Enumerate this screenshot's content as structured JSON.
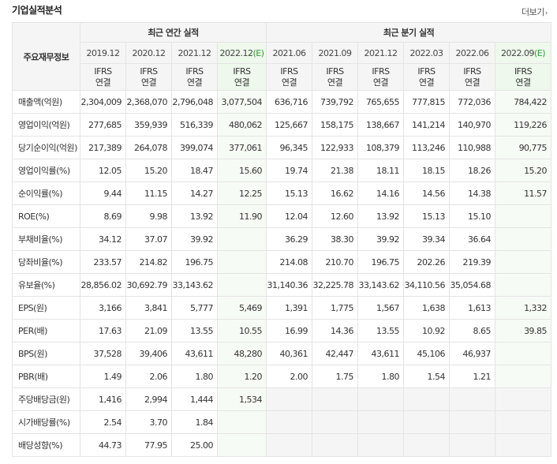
{
  "header": {
    "title": "기업실적분석",
    "more_label": "더보기",
    "more_icon": "chevron-right-icon"
  },
  "table": {
    "row_header_label": "주요재무정보",
    "annual_group_label": "최근 연간 실적",
    "quarter_group_label": "최근 분기 실적",
    "periods": [
      {
        "label": "2019.12",
        "est": "",
        "type_line1": "IFRS",
        "type_line2": "연결"
      },
      {
        "label": "2020.12",
        "est": "",
        "type_line1": "IFRS",
        "type_line2": "연결"
      },
      {
        "label": "2021.12",
        "est": "",
        "type_line1": "IFRS",
        "type_line2": "연결"
      },
      {
        "label": "2022.12",
        "est": "(E)",
        "type_line1": "IFRS",
        "type_line2": "연결"
      },
      {
        "label": "2021.06",
        "est": "",
        "type_line1": "IFRS",
        "type_line2": "연결"
      },
      {
        "label": "2021.09",
        "est": "",
        "type_line1": "IFRS",
        "type_line2": "연결"
      },
      {
        "label": "2021.12",
        "est": "",
        "type_line1": "IFRS",
        "type_line2": "연결"
      },
      {
        "label": "2022.03",
        "est": "",
        "type_line1": "IFRS",
        "type_line2": "연결"
      },
      {
        "label": "2022.06",
        "est": "",
        "type_line1": "IFRS",
        "type_line2": "연결"
      },
      {
        "label": "2022.09",
        "est": "(E)",
        "type_line1": "IFRS",
        "type_line2": "연결"
      }
    ],
    "rows": [
      {
        "label": "매출액(억원)",
        "values": [
          "2,304,009",
          "2,368,070",
          "2,796,048",
          "3,077,504",
          "636,716",
          "739,792",
          "765,655",
          "777,815",
          "772,036",
          "784,422"
        ]
      },
      {
        "label": "영업이익(억원)",
        "values": [
          "277,685",
          "359,939",
          "516,339",
          "480,062",
          "125,667",
          "158,175",
          "138,667",
          "141,214",
          "140,970",
          "119,226"
        ]
      },
      {
        "label": "당기순이익(억원)",
        "values": [
          "217,389",
          "264,078",
          "399,074",
          "377,061",
          "96,345",
          "122,933",
          "108,379",
          "113,246",
          "110,988",
          "90,775"
        ]
      },
      {
        "label": "영업이익률(%)",
        "values": [
          "12.05",
          "15.20",
          "18.47",
          "15.60",
          "19.74",
          "21.38",
          "18.11",
          "18.15",
          "18.26",
          "15.20"
        ]
      },
      {
        "label": "순이익률(%)",
        "values": [
          "9.44",
          "11.15",
          "14.27",
          "12.25",
          "15.13",
          "16.62",
          "14.16",
          "14.56",
          "14.38",
          "11.57"
        ]
      },
      {
        "label": "ROE(%)",
        "values": [
          "8.69",
          "9.98",
          "13.92",
          "11.90",
          "12.04",
          "12.60",
          "13.92",
          "15.13",
          "15.10",
          ""
        ]
      },
      {
        "label": "부채비율(%)",
        "values": [
          "34.12",
          "37.07",
          "39.92",
          "",
          "36.29",
          "38.30",
          "39.92",
          "39.34",
          "36.64",
          ""
        ]
      },
      {
        "label": "당좌비율(%)",
        "values": [
          "233.57",
          "214.82",
          "196.75",
          "",
          "214.08",
          "210.70",
          "196.75",
          "202.26",
          "219.39",
          ""
        ]
      },
      {
        "label": "유보율(%)",
        "values": [
          "28,856.02",
          "30,692.79",
          "33,143.62",
          "",
          "31,140.36",
          "32,225.78",
          "33,143.62",
          "34,110.56",
          "35,054.68",
          ""
        ]
      },
      {
        "label": "EPS(원)",
        "values": [
          "3,166",
          "3,841",
          "5,777",
          "5,469",
          "1,391",
          "1,775",
          "1,567",
          "1,638",
          "1,613",
          "1,332"
        ]
      },
      {
        "label": "PER(배)",
        "values": [
          "17.63",
          "21.09",
          "13.55",
          "10.55",
          "16.99",
          "14.36",
          "13.55",
          "10.92",
          "8.65",
          "39.85"
        ]
      },
      {
        "label": "BPS(원)",
        "values": [
          "37,528",
          "39,406",
          "43,611",
          "48,280",
          "40,361",
          "42,447",
          "43,611",
          "45,106",
          "46,937",
          ""
        ]
      },
      {
        "label": "PBR(배)",
        "values": [
          "1.49",
          "2.06",
          "1.80",
          "1.20",
          "2.00",
          "1.75",
          "1.80",
          "1.54",
          "1.21",
          ""
        ]
      },
      {
        "label": "주당배당금(원)",
        "values": [
          "1,416",
          "2,994",
          "1,444",
          "1,534",
          "",
          "",
          "",
          "",
          "",
          ""
        ],
        "quarter_empty": true
      },
      {
        "label": "시가배당률(%)",
        "values": [
          "2.54",
          "3.70",
          "1.84",
          "",
          "",
          "",
          "",
          "",
          "",
          ""
        ],
        "quarter_empty": true
      },
      {
        "label": "배당성향(%)",
        "values": [
          "44.73",
          "77.95",
          "25.00",
          "",
          "",
          "",
          "",
          "",
          "",
          ""
        ],
        "quarter_empty": true
      }
    ]
  }
}
